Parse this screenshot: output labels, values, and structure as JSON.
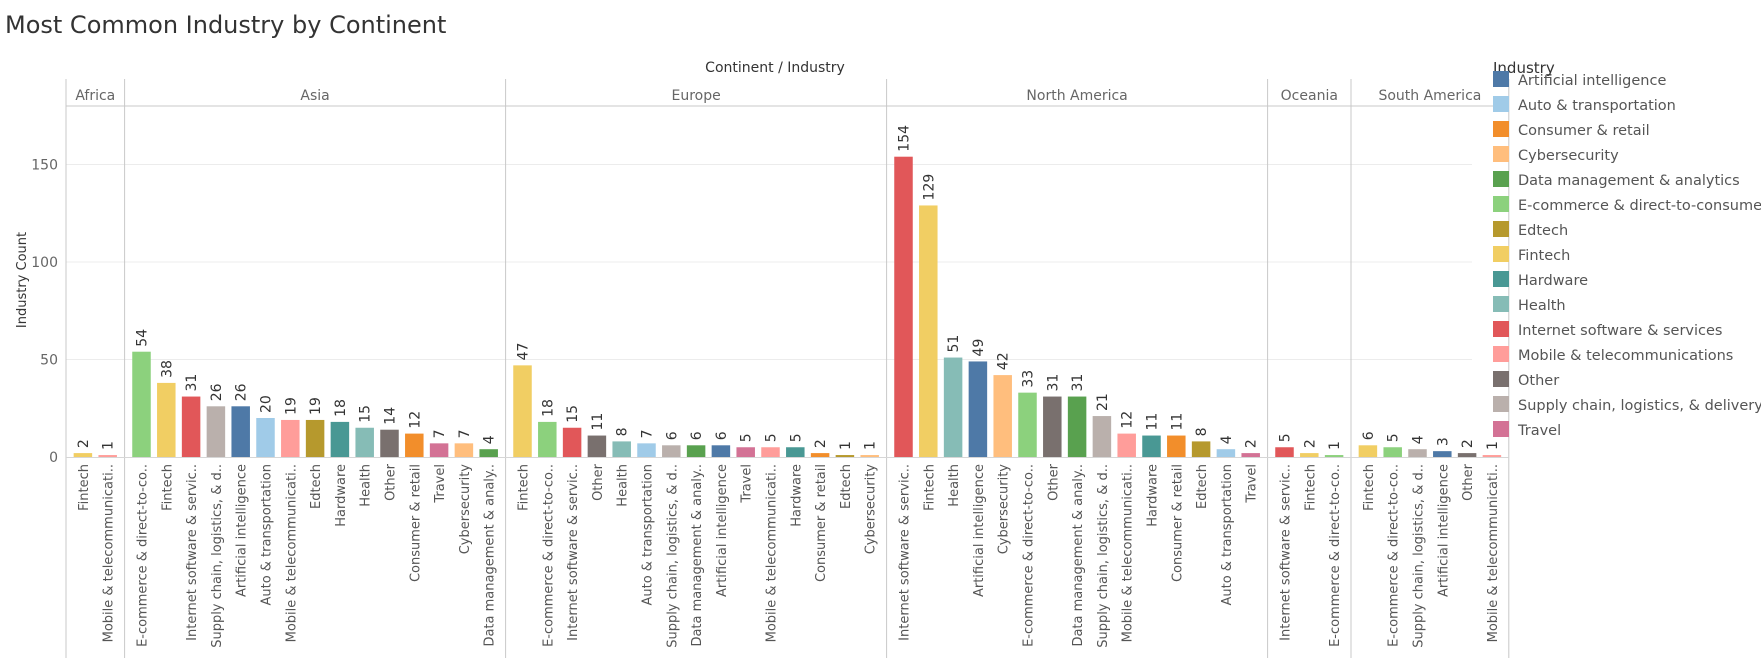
{
  "chart_data": {
    "type": "bar",
    "title": "Most Common Industry by Continent",
    "column_header": "Continent / Industry",
    "ylabel": "Industry Count",
    "ylim": [
      0,
      180
    ],
    "yticks": [
      0,
      50,
      100,
      150
    ],
    "grid": true,
    "legend": {
      "title": "Industry",
      "position": "right"
    },
    "colors": {
      "Artificial intelligence": "#4e79a7",
      "Auto & transportation": "#a0cbe8",
      "Consumer & retail": "#f28e2b",
      "Cybersecurity": "#ffbe7d",
      "Data management & analytics": "#59a14f",
      "E-commerce & direct-to-consumer": "#8cd17d",
      "Edtech": "#b6992d",
      "Fintech": "#f1ce63",
      "Hardware": "#499894",
      "Health": "#86bcb6",
      "Internet software & services": "#e15759",
      "Mobile & telecommunications": "#ff9d9a",
      "Other": "#79706e",
      "Supply chain, logistics, & delivery": "#bab0ac",
      "Travel": "#d37295"
    },
    "legend_items": [
      "Artificial intelligence",
      "Auto & transportation",
      "Consumer & retail",
      "Cybersecurity",
      "Data management & analytics",
      "E-commerce & direct-to-consumer",
      "Edtech",
      "Fintech",
      "Hardware",
      "Health",
      "Internet software & services",
      "Mobile & telecommunications",
      "Other",
      "Supply chain, logistics, & delivery",
      "Travel"
    ],
    "panels": [
      {
        "continent": "Africa",
        "bars": [
          {
            "industry": "Fintech",
            "label": "Fintech",
            "value": 2
          },
          {
            "industry": "Mobile & telecommunications",
            "label": "Mobile & telecommunicati..",
            "value": 1
          }
        ]
      },
      {
        "continent": "Asia",
        "bars": [
          {
            "industry": "E-commerce & direct-to-consumer",
            "label": "E-commerce & direct-to-co..",
            "value": 54
          },
          {
            "industry": "Fintech",
            "label": "Fintech",
            "value": 38
          },
          {
            "industry": "Internet software & services",
            "label": "Internet software & servic..",
            "value": 31
          },
          {
            "industry": "Supply chain, logistics, & delivery",
            "label": "Supply chain, logistics, & d..",
            "value": 26
          },
          {
            "industry": "Artificial intelligence",
            "label": "Artificial intelligence",
            "value": 26
          },
          {
            "industry": "Auto & transportation",
            "label": "Auto & transportation",
            "value": 20
          },
          {
            "industry": "Mobile & telecommunications",
            "label": "Mobile & telecommunicati..",
            "value": 19
          },
          {
            "industry": "Edtech",
            "label": "Edtech",
            "value": 19
          },
          {
            "industry": "Hardware",
            "label": "Hardware",
            "value": 18
          },
          {
            "industry": "Health",
            "label": "Health",
            "value": 15
          },
          {
            "industry": "Other",
            "label": "Other",
            "value": 14
          },
          {
            "industry": "Consumer & retail",
            "label": "Consumer & retail",
            "value": 12
          },
          {
            "industry": "Travel",
            "label": "Travel",
            "value": 7
          },
          {
            "industry": "Cybersecurity",
            "label": "Cybersecurity",
            "value": 7
          },
          {
            "industry": "Data management & analytics",
            "label": "Data management & analy..",
            "value": 4
          }
        ]
      },
      {
        "continent": "Europe",
        "bars": [
          {
            "industry": "Fintech",
            "label": "Fintech",
            "value": 47
          },
          {
            "industry": "E-commerce & direct-to-consumer",
            "label": "E-commerce & direct-to-co..",
            "value": 18
          },
          {
            "industry": "Internet software & services",
            "label": "Internet software & servic..",
            "value": 15
          },
          {
            "industry": "Other",
            "label": "Other",
            "value": 11
          },
          {
            "industry": "Health",
            "label": "Health",
            "value": 8
          },
          {
            "industry": "Auto & transportation",
            "label": "Auto & transportation",
            "value": 7
          },
          {
            "industry": "Supply chain, logistics, & delivery",
            "label": "Supply chain, logistics, & d..",
            "value": 6
          },
          {
            "industry": "Data management & analytics",
            "label": "Data management & analy..",
            "value": 6
          },
          {
            "industry": "Artificial intelligence",
            "label": "Artificial intelligence",
            "value": 6
          },
          {
            "industry": "Travel",
            "label": "Travel",
            "value": 5
          },
          {
            "industry": "Mobile & telecommunications",
            "label": "Mobile & telecommunicati..",
            "value": 5
          },
          {
            "industry": "Hardware",
            "label": "Hardware",
            "value": 5
          },
          {
            "industry": "Consumer & retail",
            "label": "Consumer & retail",
            "value": 2
          },
          {
            "industry": "Edtech",
            "label": "Edtech",
            "value": 1
          },
          {
            "industry": "Cybersecurity",
            "label": "Cybersecurity",
            "value": 1
          }
        ]
      },
      {
        "continent": "North America",
        "bars": [
          {
            "industry": "Internet software & services",
            "label": "Internet software & servic..",
            "value": 154
          },
          {
            "industry": "Fintech",
            "label": "Fintech",
            "value": 129
          },
          {
            "industry": "Health",
            "label": "Health",
            "value": 51
          },
          {
            "industry": "Artificial intelligence",
            "label": "Artificial intelligence",
            "value": 49
          },
          {
            "industry": "Cybersecurity",
            "label": "Cybersecurity",
            "value": 42
          },
          {
            "industry": "E-commerce & direct-to-consumer",
            "label": "E-commerce & direct-to-co..",
            "value": 33
          },
          {
            "industry": "Other",
            "label": "Other",
            "value": 31
          },
          {
            "industry": "Data management & analytics",
            "label": "Data management & analy..",
            "value": 31
          },
          {
            "industry": "Supply chain, logistics, & delivery",
            "label": "Supply chain, logistics, & d..",
            "value": 21
          },
          {
            "industry": "Mobile & telecommunications",
            "label": "Mobile & telecommunicati..",
            "value": 12
          },
          {
            "industry": "Hardware",
            "label": "Hardware",
            "value": 11
          },
          {
            "industry": "Consumer & retail",
            "label": "Consumer & retail",
            "value": 11
          },
          {
            "industry": "Edtech",
            "label": "Edtech",
            "value": 8
          },
          {
            "industry": "Auto & transportation",
            "label": "Auto & transportation",
            "value": 4
          },
          {
            "industry": "Travel",
            "label": "Travel",
            "value": 2
          }
        ]
      },
      {
        "continent": "Oceania",
        "bars": [
          {
            "industry": "Internet software & services",
            "label": "Internet software & servic..",
            "value": 5
          },
          {
            "industry": "Fintech",
            "label": "Fintech",
            "value": 2
          },
          {
            "industry": "E-commerce & direct-to-consumer",
            "label": "E-commerce & direct-to-co..",
            "value": 1
          }
        ]
      },
      {
        "continent": "South America",
        "bars": [
          {
            "industry": "Fintech",
            "label": "Fintech",
            "value": 6
          },
          {
            "industry": "E-commerce & direct-to-consumer",
            "label": "E-commerce & direct-to-co..",
            "value": 5
          },
          {
            "industry": "Supply chain, logistics, & delivery",
            "label": "Supply chain, logistics, & d..",
            "value": 4
          },
          {
            "industry": "Artificial intelligence",
            "label": "Artificial intelligence",
            "value": 3
          },
          {
            "industry": "Other",
            "label": "Other",
            "value": 2
          },
          {
            "industry": "Mobile & telecommunications",
            "label": "Mobile & telecommunicati..",
            "value": 1
          }
        ]
      }
    ]
  }
}
